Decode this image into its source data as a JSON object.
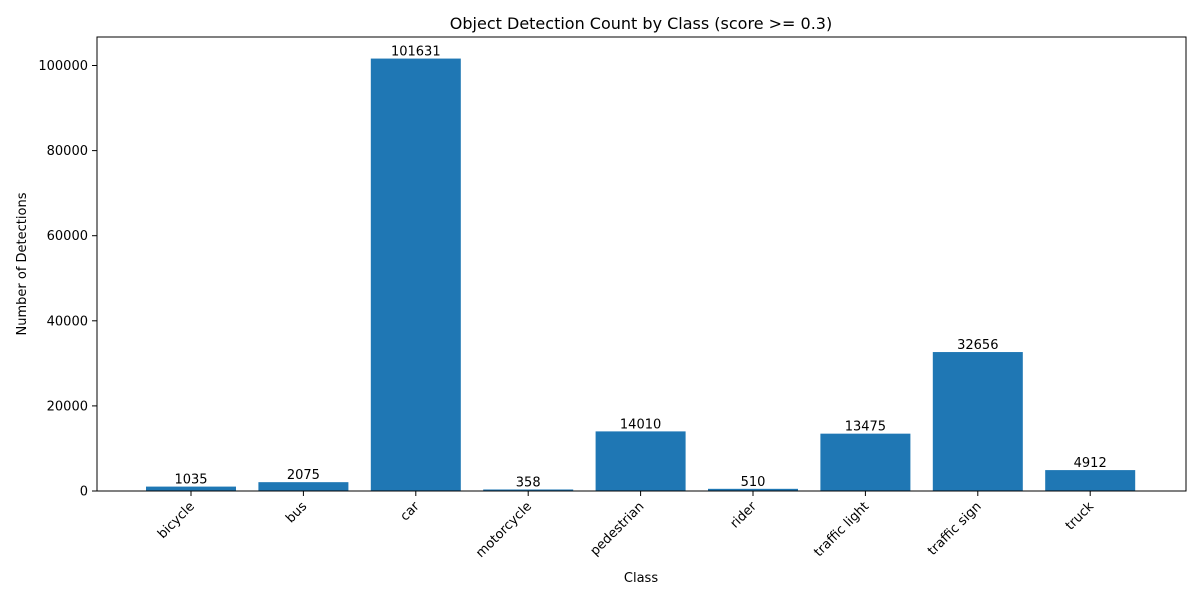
{
  "chart_data": {
    "type": "bar",
    "title": "Object Detection Count by Class (score >= 0.3)",
    "xlabel": "Class",
    "ylabel": "Number of Detections",
    "categories": [
      "bicycle",
      "bus",
      "car",
      "motorcycle",
      "pedestrian",
      "rider",
      "traffic light",
      "traffic sign",
      "truck"
    ],
    "values": [
      1035,
      2075,
      101631,
      358,
      14010,
      510,
      13475,
      32656,
      4912
    ],
    "data_labels": [
      "1035",
      "2075",
      "101631",
      "358",
      "14010",
      "510",
      "13475",
      "32656",
      "4912"
    ],
    "ylim": [
      0,
      106700
    ],
    "yticks": [
      0,
      20000,
      40000,
      60000,
      80000,
      100000
    ],
    "ytick_labels": [
      "0",
      "20000",
      "40000",
      "60000",
      "80000",
      "100000"
    ],
    "bar_color": "#1f77b4",
    "grid": false,
    "legend": "none"
  }
}
